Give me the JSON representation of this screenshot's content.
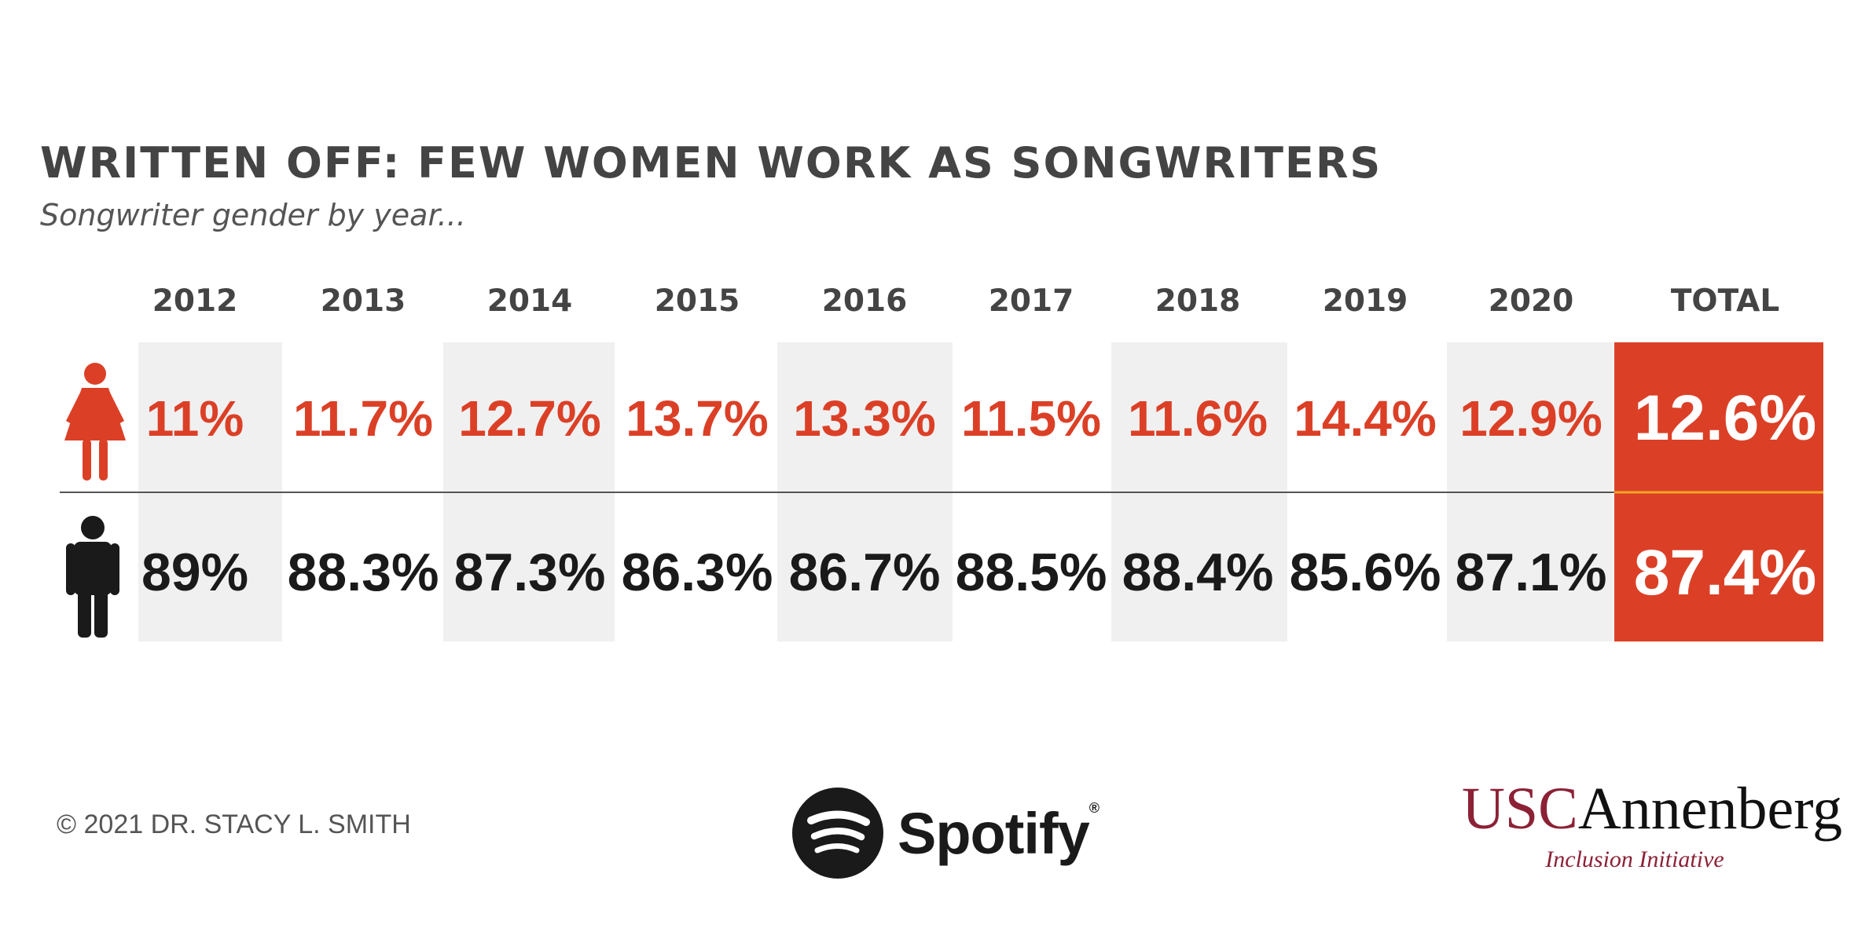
{
  "title": "WRITTEN OFF: FEW WOMEN WORK AS SONGWRITERS",
  "subtitle": "Songwriter gender by year...",
  "chart_data": {
    "type": "table",
    "columns": [
      "2012",
      "2013",
      "2014",
      "2015",
      "2016",
      "2017",
      "2018",
      "2019",
      "2020",
      "TOTAL"
    ],
    "series": [
      {
        "icon": "woman-icon",
        "labels": [
          "11%",
          "11.7%",
          "12.7%",
          "13.7%",
          "13.3%",
          "11.5%",
          "11.6%",
          "14.4%",
          "12.9%",
          "12.6%"
        ],
        "values": [
          11,
          11.7,
          12.7,
          13.7,
          13.3,
          11.5,
          11.6,
          14.4,
          12.9,
          12.6
        ]
      },
      {
        "icon": "man-icon",
        "labels": [
          "89%",
          "88.3%",
          "87.3%",
          "86.3%",
          "86.7%",
          "88.5%",
          "88.4%",
          "85.6%",
          "87.1%",
          "87.4%"
        ],
        "values": [
          89,
          88.3,
          87.3,
          86.3,
          86.7,
          88.5,
          88.4,
          85.6,
          87.1,
          87.4
        ]
      }
    ]
  },
  "colors": {
    "accent": "#db4027",
    "woman_text": "#db4027",
    "man_text": "#1a1a1a",
    "shade": "#f0f0f0",
    "total_divider": "#f5a623"
  },
  "footer": {
    "copyright": "© 2021 DR. STACY L. SMITH",
    "spotify_text": "Spotify",
    "spotify_mark": "®",
    "usc_red": "USC",
    "usc_black": "Annenberg",
    "usc_sub": "Inclusion Initiative"
  }
}
